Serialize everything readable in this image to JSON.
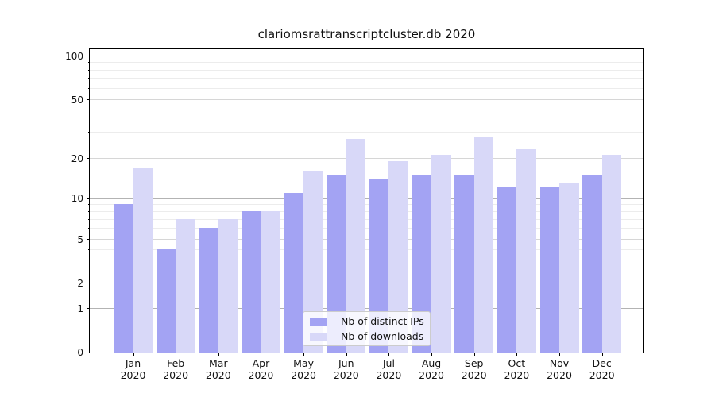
{
  "title": "clariomsrattranscriptcluster.db 2020",
  "chart_data": {
    "type": "bar",
    "title": "clariomsrattranscriptcluster.db 2020",
    "categories": [
      "Jan",
      "Feb",
      "Mar",
      "Apr",
      "May",
      "Jun",
      "Jul",
      "Aug",
      "Sep",
      "Oct",
      "Nov",
      "Dec"
    ],
    "year_label": "2020",
    "series": [
      {
        "name": "Nb of distinct IPs",
        "color": "#a3a3f3",
        "values": [
          9,
          4,
          6,
          8,
          11,
          15,
          14,
          15,
          15,
          12,
          12,
          15
        ]
      },
      {
        "name": "Nb of downloads",
        "color": "#d8d8f8",
        "values": [
          17,
          7,
          7,
          8,
          16,
          27,
          19,
          21,
          28,
          23,
          13,
          21
        ]
      }
    ],
    "yticks": [
      0,
      1,
      2,
      5,
      10,
      20,
      50,
      100
    ],
    "major_decades": [
      1,
      10,
      100
    ],
    "minor_gridlines": [
      3,
      4,
      6,
      7,
      8,
      9,
      30,
      40,
      60,
      70,
      80,
      90
    ],
    "ylim": [
      0,
      100
    ],
    "yscale": "log-like",
    "grid": "on",
    "legend_position": "inside-bottom-center"
  },
  "legend": {
    "items": [
      {
        "label": "Nb of distinct IPs",
        "color": "#a3a3f3"
      },
      {
        "label": "Nb of downloads",
        "color": "#d8d8f8"
      }
    ]
  }
}
